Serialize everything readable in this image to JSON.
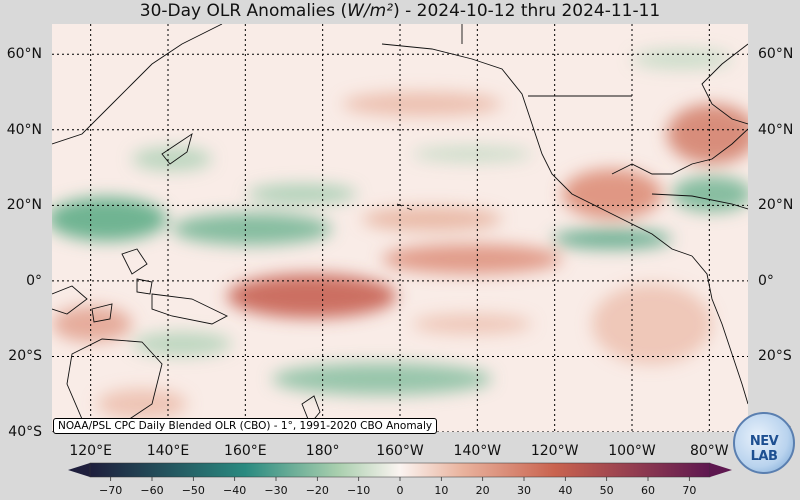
{
  "title": {
    "prefix": "30-Day OLR Anomalies (",
    "unit": "W/m²",
    "suffix": ") - 2024-10-12 thru 2024-11-11"
  },
  "source_note": "NOAA/PSL CPC Daily Blended OLR (CBO) - 1°, 1991-2020 CBO Anomaly",
  "lat_labels": [
    "60°N",
    "40°N",
    "20°N",
    "0°",
    "20°S",
    "40°S"
  ],
  "lat_values": [
    60,
    40,
    20,
    0,
    -20,
    -40
  ],
  "lon_labels": [
    "120°E",
    "140°E",
    "160°E",
    "180°",
    "160°W",
    "140°W",
    "120°W",
    "100°W",
    "80°W"
  ],
  "lon_values": [
    120,
    140,
    160,
    180,
    200,
    220,
    240,
    260,
    280
  ],
  "map_extent": {
    "lon_min": 110,
    "lon_max": 290,
    "lat_min": -40,
    "lat_max": 68
  },
  "colorbar": {
    "ticks": [
      "−70",
      "−60",
      "−50",
      "−40",
      "−30",
      "−20",
      "−10",
      "0",
      "10",
      "20",
      "30",
      "40",
      "50",
      "60",
      "70"
    ],
    "tick_values": [
      -70,
      -60,
      -50,
      -40,
      -30,
      -20,
      -10,
      0,
      10,
      20,
      30,
      40,
      50,
      60,
      70
    ],
    "range": [
      -75,
      75
    ],
    "colors": {
      "neg_end": "#1e1e3c",
      "neg_mid": "#2a8a80",
      "neg_light": "#a9cfae",
      "neutral": "#fbf4f1",
      "pos_light": "#e9b39e",
      "pos_mid": "#c9634f",
      "pos_end": "#5e1850"
    }
  },
  "anomaly_colors": {
    "positive": "#d9826b",
    "positive_strong": "#c45a4a",
    "negative": "#5fae88",
    "negative_strong": "#2f9379",
    "background": "#f9ece7"
  },
  "logo_text": "NEV LAB"
}
